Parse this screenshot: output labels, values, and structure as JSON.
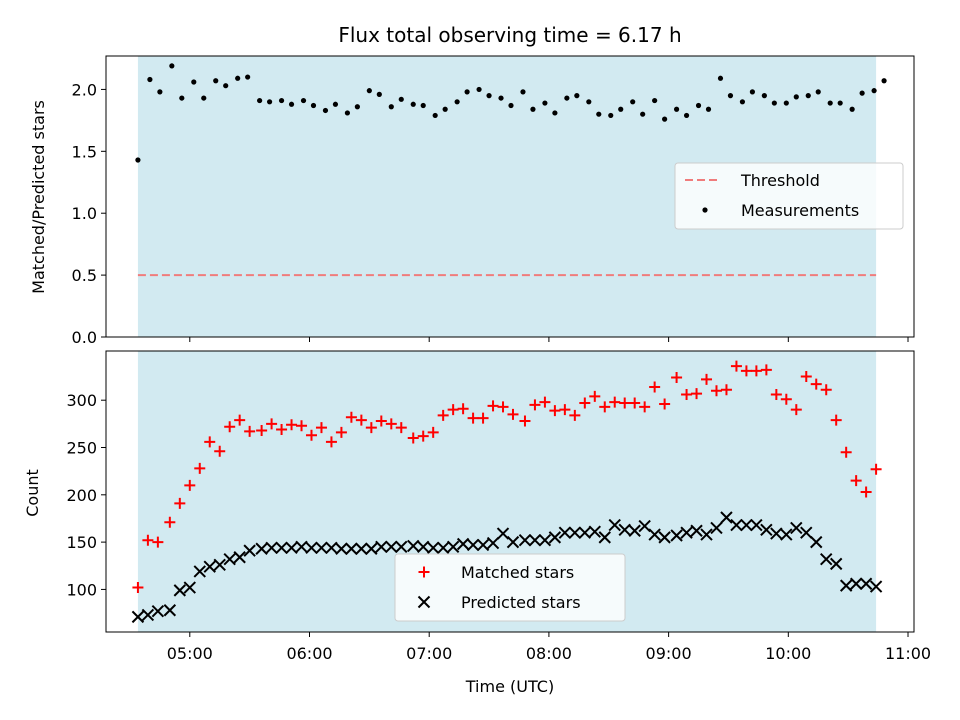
{
  "title": "Flux total observing time = 6.17 h",
  "xlabel": "Time (UTC)",
  "colors": {
    "observing_band": "#add8e6",
    "threshold": "#f07c7c",
    "measurements": "#000000",
    "matched": "#ff0000",
    "predicted": "#000000"
  },
  "x_ticks": [
    "05:00",
    "06:00",
    "07:00",
    "08:00",
    "09:00",
    "10:00",
    "11:00"
  ],
  "chart_data": [
    {
      "type": "scatter",
      "ylabel": "Matched/Predicted stars",
      "xlim": [
        "04:18",
        "11:03"
      ],
      "ylim": [
        0,
        2.27
      ],
      "yticks": [
        "0.0",
        "0.5",
        "1.0",
        "1.5",
        "2.0"
      ],
      "observing_window": [
        "04:34",
        "10:44"
      ],
      "legend": {
        "position": "center-right",
        "entries": [
          "Threshold",
          "Measurements"
        ]
      },
      "threshold": {
        "name": "Threshold",
        "value": 0.5
      },
      "series": [
        {
          "name": "Measurements",
          "x": [
            "04:34",
            "04:40",
            "04:45",
            "04:51",
            "04:56",
            "05:02",
            "05:07",
            "05:13",
            "05:18",
            "05:24",
            "05:29",
            "05:35",
            "05:40",
            "05:46",
            "05:51",
            "05:57",
            "06:02",
            "06:08",
            "06:13",
            "06:19",
            "06:24",
            "06:30",
            "06:35",
            "06:41",
            "06:46",
            "06:52",
            "06:57",
            "07:03",
            "07:08",
            "07:14",
            "07:19",
            "07:25",
            "07:30",
            "07:36",
            "07:41",
            "07:47",
            "07:52",
            "07:58",
            "08:03",
            "08:09",
            "08:14",
            "08:20",
            "08:25",
            "08:31",
            "08:36",
            "08:42",
            "08:47",
            "08:53",
            "08:58",
            "09:04",
            "09:09",
            "09:15",
            "09:20",
            "09:26",
            "09:31",
            "09:37",
            "09:42",
            "09:48",
            "09:53",
            "09:59",
            "10:04",
            "10:10",
            "10:15",
            "10:21",
            "10:26",
            "10:32",
            "10:37",
            "10:43",
            "10:48"
          ],
          "y": [
            1.43,
            2.08,
            1.98,
            2.19,
            1.93,
            2.06,
            1.93,
            2.07,
            2.03,
            2.09,
            2.1,
            1.91,
            1.9,
            1.91,
            1.88,
            1.91,
            1.87,
            1.83,
            1.88,
            1.81,
            1.86,
            1.99,
            1.96,
            1.86,
            1.92,
            1.88,
            1.87,
            1.79,
            1.84,
            1.9,
            1.98,
            2.0,
            1.95,
            1.93,
            1.87,
            1.98,
            1.84,
            1.89,
            1.81,
            1.93,
            1.95,
            1.9,
            1.8,
            1.79,
            1.84,
            1.9,
            1.8,
            1.91,
            1.76,
            1.84,
            1.79,
            1.87,
            1.84,
            2.09,
            1.95,
            1.9,
            1.98,
            1.95,
            1.89,
            1.89,
            1.94,
            1.95,
            1.98,
            1.89,
            1.89,
            1.84,
            1.97,
            1.99,
            2.07
          ]
        }
      ]
    },
    {
      "type": "scatter",
      "ylabel": "Count",
      "xlim": [
        "04:18",
        "11:03"
      ],
      "ylim": [
        55,
        352
      ],
      "yticks": [
        "100",
        "150",
        "200",
        "250",
        "300"
      ],
      "observing_window": [
        "04:34",
        "10:44"
      ],
      "legend": {
        "position": "lower-center",
        "entries": [
          "Matched stars",
          "Predicted stars"
        ]
      },
      "series": [
        {
          "name": "Matched stars",
          "marker": "plus",
          "x": [
            "04:34",
            "04:39",
            "04:44",
            "04:50",
            "04:55",
            "05:00",
            "05:05",
            "05:10",
            "05:15",
            "05:20",
            "05:25",
            "05:30",
            "05:36",
            "05:41",
            "05:46",
            "05:51",
            "05:56",
            "06:01",
            "06:06",
            "06:11",
            "06:16",
            "06:21",
            "06:26",
            "06:31",
            "06:36",
            "06:41",
            "06:46",
            "06:52",
            "06:57",
            "07:02",
            "07:07",
            "07:12",
            "07:17",
            "07:22",
            "07:27",
            "07:32",
            "07:37",
            "07:42",
            "07:48",
            "07:53",
            "07:58",
            "08:03",
            "08:08",
            "08:13",
            "08:18",
            "08:23",
            "08:28",
            "08:33",
            "08:38",
            "08:43",
            "08:48",
            "08:53",
            "08:58",
            "09:04",
            "09:09",
            "09:14",
            "09:19",
            "09:24",
            "09:29",
            "09:34",
            "09:39",
            "09:44",
            "09:49",
            "09:54",
            "09:59",
            "10:04",
            "10:09",
            "10:14",
            "10:19",
            "10:24",
            "10:29",
            "10:34",
            "10:39",
            "10:44"
          ],
          "y": [
            102,
            152,
            150,
            171,
            191,
            210,
            228,
            256,
            246,
            272,
            279,
            267,
            268,
            275,
            269,
            274,
            273,
            263,
            271,
            256,
            266,
            282,
            279,
            271,
            278,
            275,
            271,
            260,
            262,
            266,
            284,
            290,
            291,
            281,
            281,
            294,
            293,
            285,
            278,
            295,
            298,
            289,
            290,
            284,
            297,
            304,
            293,
            298,
            297,
            297,
            293,
            314,
            296,
            324,
            306,
            307,
            322,
            310,
            311,
            336,
            331,
            331,
            332,
            306,
            301,
            290,
            325,
            317,
            311,
            279,
            245,
            215,
            203,
            227
          ]
        },
        {
          "name": "Predicted stars",
          "marker": "x",
          "x": [
            "04:34",
            "04:39",
            "04:44",
            "04:50",
            "04:55",
            "05:00",
            "05:05",
            "05:10",
            "05:15",
            "05:20",
            "05:25",
            "05:30",
            "05:36",
            "05:41",
            "05:46",
            "05:51",
            "05:56",
            "06:01",
            "06:06",
            "06:11",
            "06:16",
            "06:21",
            "06:26",
            "06:31",
            "06:36",
            "06:41",
            "06:46",
            "06:52",
            "06:57",
            "07:02",
            "07:07",
            "07:12",
            "07:17",
            "07:22",
            "07:27",
            "07:32",
            "07:37",
            "07:42",
            "07:48",
            "07:53",
            "07:58",
            "08:03",
            "08:08",
            "08:13",
            "08:18",
            "08:23",
            "08:28",
            "08:33",
            "08:38",
            "08:43",
            "08:48",
            "08:53",
            "08:58",
            "09:04",
            "09:09",
            "09:14",
            "09:19",
            "09:24",
            "09:29",
            "09:34",
            "09:39",
            "09:44",
            "09:49",
            "09:54",
            "09:59",
            "10:04",
            "10:09",
            "10:14",
            "10:19",
            "10:24",
            "10:29",
            "10:34",
            "10:39",
            "10:44"
          ],
          "y": [
            71,
            73,
            77,
            78,
            99,
            102,
            119,
            124,
            126,
            132,
            134,
            141,
            143,
            144,
            144,
            144,
            145,
            144,
            144,
            144,
            143,
            143,
            143,
            143,
            145,
            145,
            145,
            146,
            145,
            144,
            144,
            145,
            148,
            147,
            147,
            149,
            159,
            150,
            152,
            152,
            152,
            155,
            160,
            160,
            160,
            161,
            155,
            168,
            163,
            162,
            167,
            158,
            155,
            157,
            160,
            162,
            158,
            165,
            176,
            168,
            168,
            168,
            163,
            159,
            158,
            165,
            160,
            150,
            132,
            127,
            104,
            106,
            106,
            103
          ]
        }
      ]
    }
  ]
}
